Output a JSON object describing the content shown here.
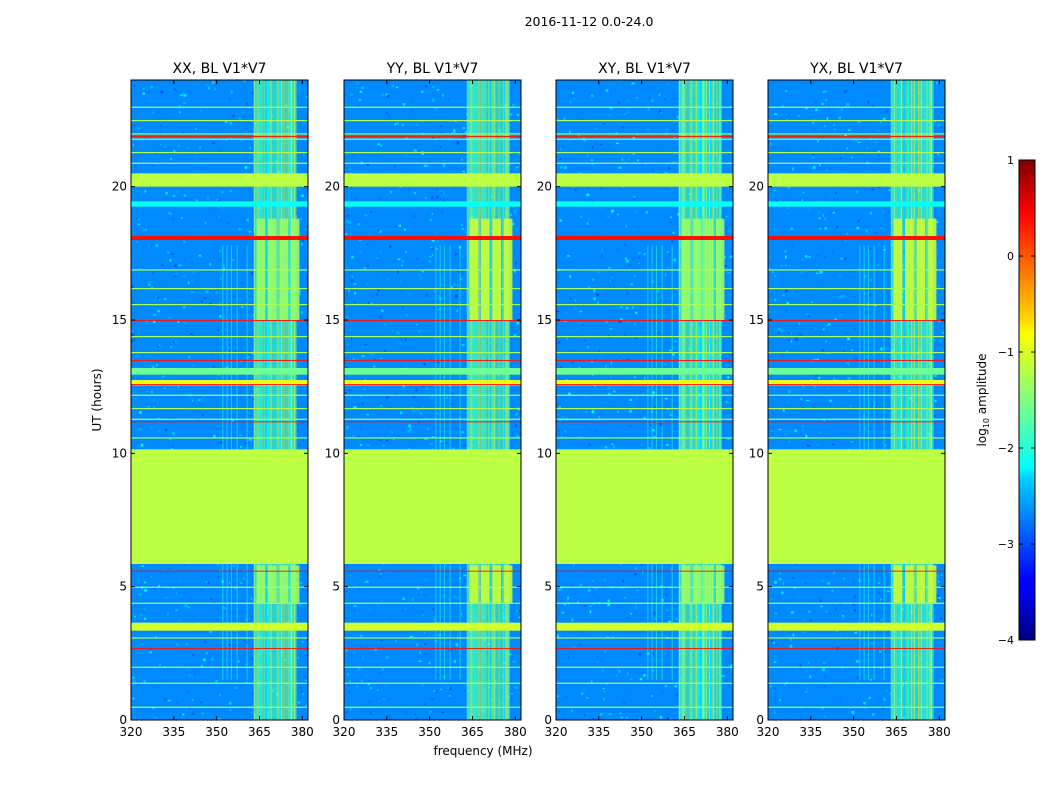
{
  "chart_data": {
    "type": "heatmap",
    "suptitle": "2016-11-12 0.0-24.0",
    "xlabel": "frequency (MHz)",
    "ylabel": "UT (hours)",
    "xlim": [
      320,
      382
    ],
    "ylim": [
      0,
      24
    ],
    "xticks": [
      "320",
      "335",
      "350",
      "365",
      "380"
    ],
    "xtick_values": [
      320,
      335,
      350,
      365,
      380
    ],
    "yticks": [
      "0",
      "5",
      "10",
      "15",
      "20"
    ],
    "ytick_values": [
      0,
      5,
      10,
      15,
      20
    ],
    "panels": [
      {
        "title": "XX, BL V1*V7",
        "pol": "XX"
      },
      {
        "title": "YY, BL V1*V7",
        "pol": "YY"
      },
      {
        "title": "XY, BL V1*V7",
        "pol": "XY"
      },
      {
        "title": "YX, BL V1*V7",
        "pol": "YX"
      }
    ],
    "colorbar": {
      "label": "log10 amplitude",
      "label_main": "log",
      "label_sub": "10",
      "label_rest": " amplitude",
      "range": [
        -4,
        1
      ],
      "ticks": [
        "1",
        "0",
        "−1",
        "−2",
        "−3",
        "−4"
      ],
      "tick_values": [
        1,
        0,
        -1,
        -2,
        -3,
        -4
      ],
      "colormap": "jet"
    },
    "features": {
      "background_level": -2.7,
      "flagged_block_hours": [
        5.85,
        10.15
      ],
      "flagged_block_level": -1.2,
      "rfi_band_mhz": [
        363,
        378
      ],
      "rfi_band_level": -1.6,
      "strong_rfi_hours_top": [
        15.0,
        18.8
      ],
      "strong_rfi_hours_bottom": [
        4.4,
        5.8
      ],
      "bright_hour_bands": [
        {
          "start": 20.0,
          "end": 20.5,
          "level": -1.2
        },
        {
          "start": 19.25,
          "end": 19.45,
          "level": -2.1
        },
        {
          "start": 18.0,
          "end": 18.15,
          "level": 0.3
        },
        {
          "start": 12.95,
          "end": 13.2,
          "level": -1.6
        },
        {
          "start": 12.55,
          "end": 12.75,
          "level": -1.0
        },
        {
          "start": 3.35,
          "end": 3.65,
          "level": -1.1
        }
      ],
      "thin_lines_hours": [
        23.0,
        22.5,
        22.0,
        21.8,
        21.3,
        20.9,
        16.9,
        16.2,
        15.6,
        14.4,
        13.8,
        12.2,
        11.7,
        11.3,
        10.6,
        5.0,
        4.4,
        3.1,
        2.0,
        1.4,
        0.5
      ],
      "red_lines_hours": [
        21.9,
        18.1,
        15.0,
        13.5,
        12.6,
        11.2,
        5.6,
        2.7
      ]
    }
  }
}
